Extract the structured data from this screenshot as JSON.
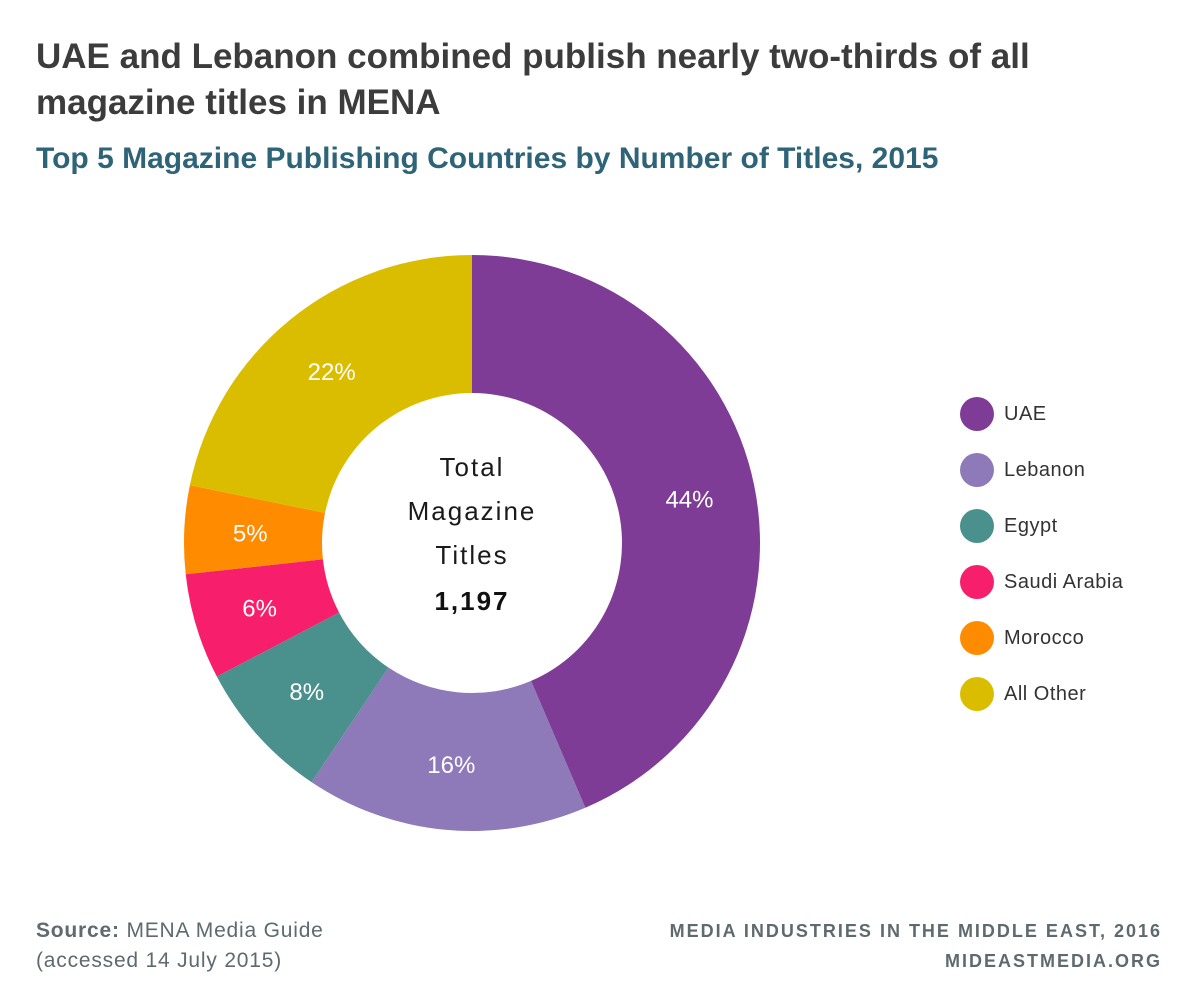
{
  "header": {
    "title": "UAE and Lebanon combined publish nearly two-thirds of all magazine titles in MENA",
    "subtitle": "Top 5 Magazine Publishing Countries by Number of Titles, 2015"
  },
  "chart_data": {
    "type": "pie",
    "donut": true,
    "title": "UAE and Lebanon combined publish nearly two-thirds of all magazine titles in MENA",
    "subtitle": "Top 5 Magazine Publishing Countries by Number of Titles, 2015",
    "center_label": [
      "Total",
      "Magazine",
      "Titles"
    ],
    "center_value": "1,197",
    "slices": [
      {
        "name": "UAE",
        "value": 44,
        "label": "44%",
        "color": "#7f3c97"
      },
      {
        "name": "Lebanon",
        "value": 16,
        "label": "16%",
        "color": "#8e79b9"
      },
      {
        "name": "Egypt",
        "value": 8,
        "label": "8%",
        "color": "#4a918e"
      },
      {
        "name": "Saudi Arabia",
        "value": 6,
        "label": "6%",
        "color": "#f71f6c"
      },
      {
        "name": "Morocco",
        "value": 5,
        "label": "5%",
        "color": "#ff8b00"
      },
      {
        "name": "All Other",
        "value": 22,
        "label": "22%",
        "color": "#dbbd00"
      }
    ],
    "legend_position": "right"
  },
  "footer": {
    "source_label": "Source:",
    "source_text": "MENA Media Guide",
    "source_note": "(accessed 14 July 2015)",
    "credit_line1": "MEDIA INDUSTRIES IN THE MIDDLE EAST, 2016",
    "credit_line2": "MIDEASTMEDIA.ORG"
  }
}
